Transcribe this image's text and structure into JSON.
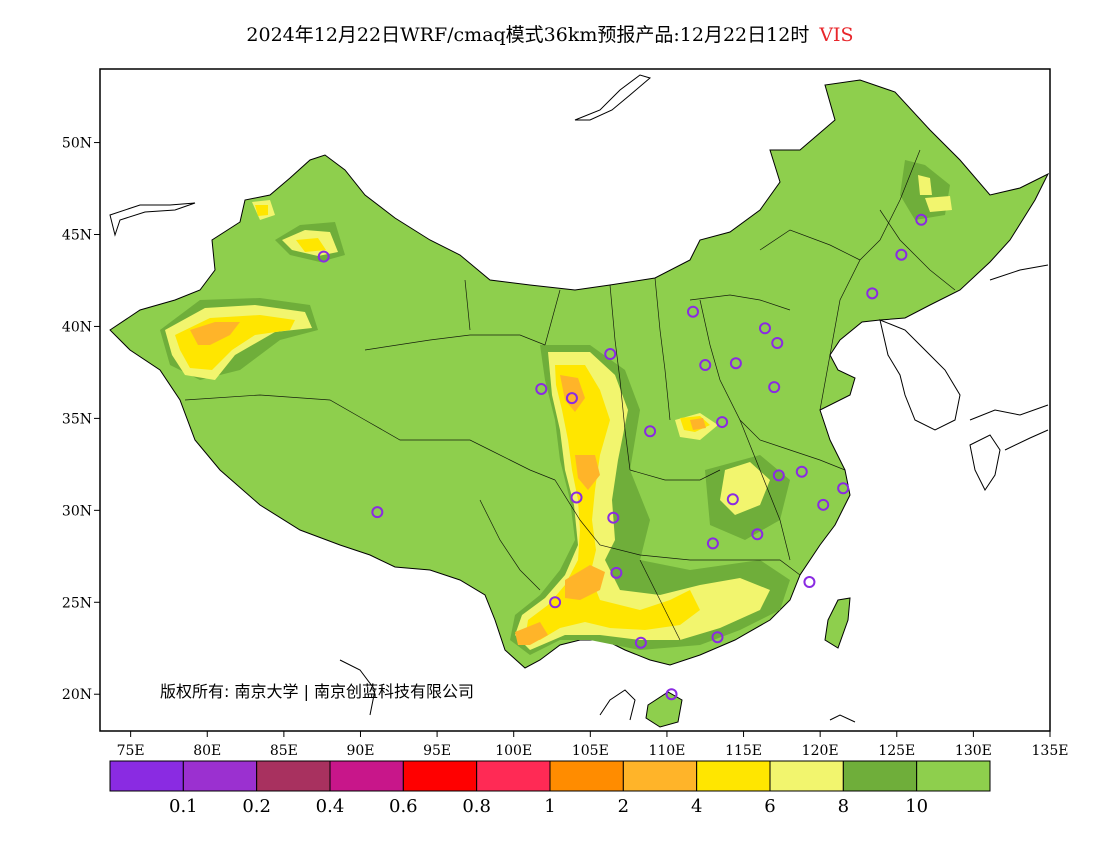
{
  "title": {
    "text": "2024年12月22日WRF/cmaq模式36km预报产品:12月22日12时",
    "variable": "VIS"
  },
  "copyright": "版权所有: 南京大学 | 南京创蓝科技有限公司",
  "colors": {
    "ocean": "#ffffff",
    "land_outline": "#000000",
    "station_marker": "#8a2be2"
  },
  "chart_data": {
    "type": "heatmap",
    "x_axis": {
      "range": [
        73,
        135
      ],
      "ticks": [
        "75E",
        "80E",
        "85E",
        "90E",
        "95E",
        "100E",
        "105E",
        "110E",
        "115E",
        "120E",
        "125E",
        "130E",
        "135E"
      ]
    },
    "y_axis": {
      "range": [
        18,
        54
      ],
      "ticks": [
        "20N",
        "25N",
        "30N",
        "35N",
        "40N",
        "45N",
        "50N"
      ]
    },
    "colorbar": {
      "bins": [
        {
          "color": "#8a2be2"
        },
        {
          "color": "#9b30d0"
        },
        {
          "color": "#a8315f"
        },
        {
          "color": "#c8168a"
        },
        {
          "color": "#ff0000"
        },
        {
          "color": "#ff2a55"
        },
        {
          "color": "#ff8c00"
        },
        {
          "color": "#ffb429"
        },
        {
          "color": "#ffe600"
        },
        {
          "color": "#f2f56e"
        },
        {
          "color": "#6fae3a"
        },
        {
          "color": "#8ecf4d"
        }
      ],
      "labels": [
        "0.1",
        "0.2",
        "0.4",
        "0.6",
        "0.8",
        "1",
        "2",
        "4",
        "6",
        "8",
        "10"
      ]
    },
    "stations": [
      {
        "lon": 87.6,
        "lat": 43.8
      },
      {
        "lon": 91.1,
        "lat": 29.9
      },
      {
        "lon": 101.8,
        "lat": 36.6
      },
      {
        "lon": 103.8,
        "lat": 36.1
      },
      {
        "lon": 106.3,
        "lat": 38.5
      },
      {
        "lon": 104.1,
        "lat": 30.7
      },
      {
        "lon": 106.5,
        "lat": 29.6
      },
      {
        "lon": 106.7,
        "lat": 26.6
      },
      {
        "lon": 102.7,
        "lat": 25.0
      },
      {
        "lon": 108.3,
        "lat": 22.8
      },
      {
        "lon": 110.3,
        "lat": 20.0
      },
      {
        "lon": 113.3,
        "lat": 23.1
      },
      {
        "lon": 113.0,
        "lat": 28.2
      },
      {
        "lon": 114.3,
        "lat": 30.6
      },
      {
        "lon": 115.9,
        "lat": 28.7
      },
      {
        "lon": 117.3,
        "lat": 31.9
      },
      {
        "lon": 118.8,
        "lat": 32.1
      },
      {
        "lon": 120.2,
        "lat": 30.3
      },
      {
        "lon": 121.5,
        "lat": 31.2
      },
      {
        "lon": 119.3,
        "lat": 26.1
      },
      {
        "lon": 108.9,
        "lat": 34.3
      },
      {
        "lon": 113.6,
        "lat": 34.8
      },
      {
        "lon": 111.7,
        "lat": 40.8
      },
      {
        "lon": 112.5,
        "lat": 37.9
      },
      {
        "lon": 114.5,
        "lat": 38.0
      },
      {
        "lon": 116.4,
        "lat": 39.9
      },
      {
        "lon": 117.2,
        "lat": 39.1
      },
      {
        "lon": 117.0,
        "lat": 36.7
      },
      {
        "lon": 123.4,
        "lat": 41.8
      },
      {
        "lon": 125.3,
        "lat": 43.9
      },
      {
        "lon": 126.6,
        "lat": 45.8
      }
    ]
  }
}
